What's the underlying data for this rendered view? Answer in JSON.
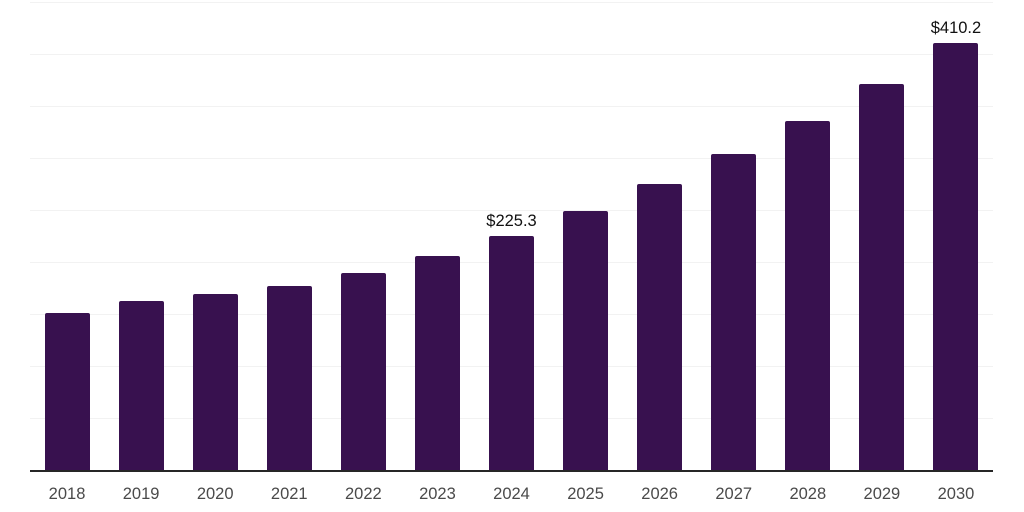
{
  "chart_data": {
    "type": "bar",
    "title": "",
    "xlabel": "",
    "ylabel": "",
    "categories": [
      "2018",
      "2019",
      "2020",
      "2021",
      "2022",
      "2023",
      "2024",
      "2025",
      "2026",
      "2027",
      "2028",
      "2029",
      "2030"
    ],
    "values": [
      150.8,
      162.1,
      169.0,
      177.2,
      189.7,
      205.8,
      225.3,
      249.0,
      275.1,
      304.0,
      335.9,
      371.2,
      410.2
    ],
    "bar_labels": [
      "",
      "",
      "",
      "",
      "",
      "",
      "$225.3",
      "",
      "",
      "",
      "",
      "",
      "$410.2"
    ],
    "ylim": [
      0,
      450
    ],
    "gridline_step": 50,
    "grid": true,
    "legend_position": "none",
    "colors": {
      "bar": "#38114F",
      "gridline": "#F2F2F2",
      "axis": "#262626",
      "tick_label": "#4A4A4A",
      "value_label": "#111111",
      "background": "#FFFFFF"
    }
  }
}
